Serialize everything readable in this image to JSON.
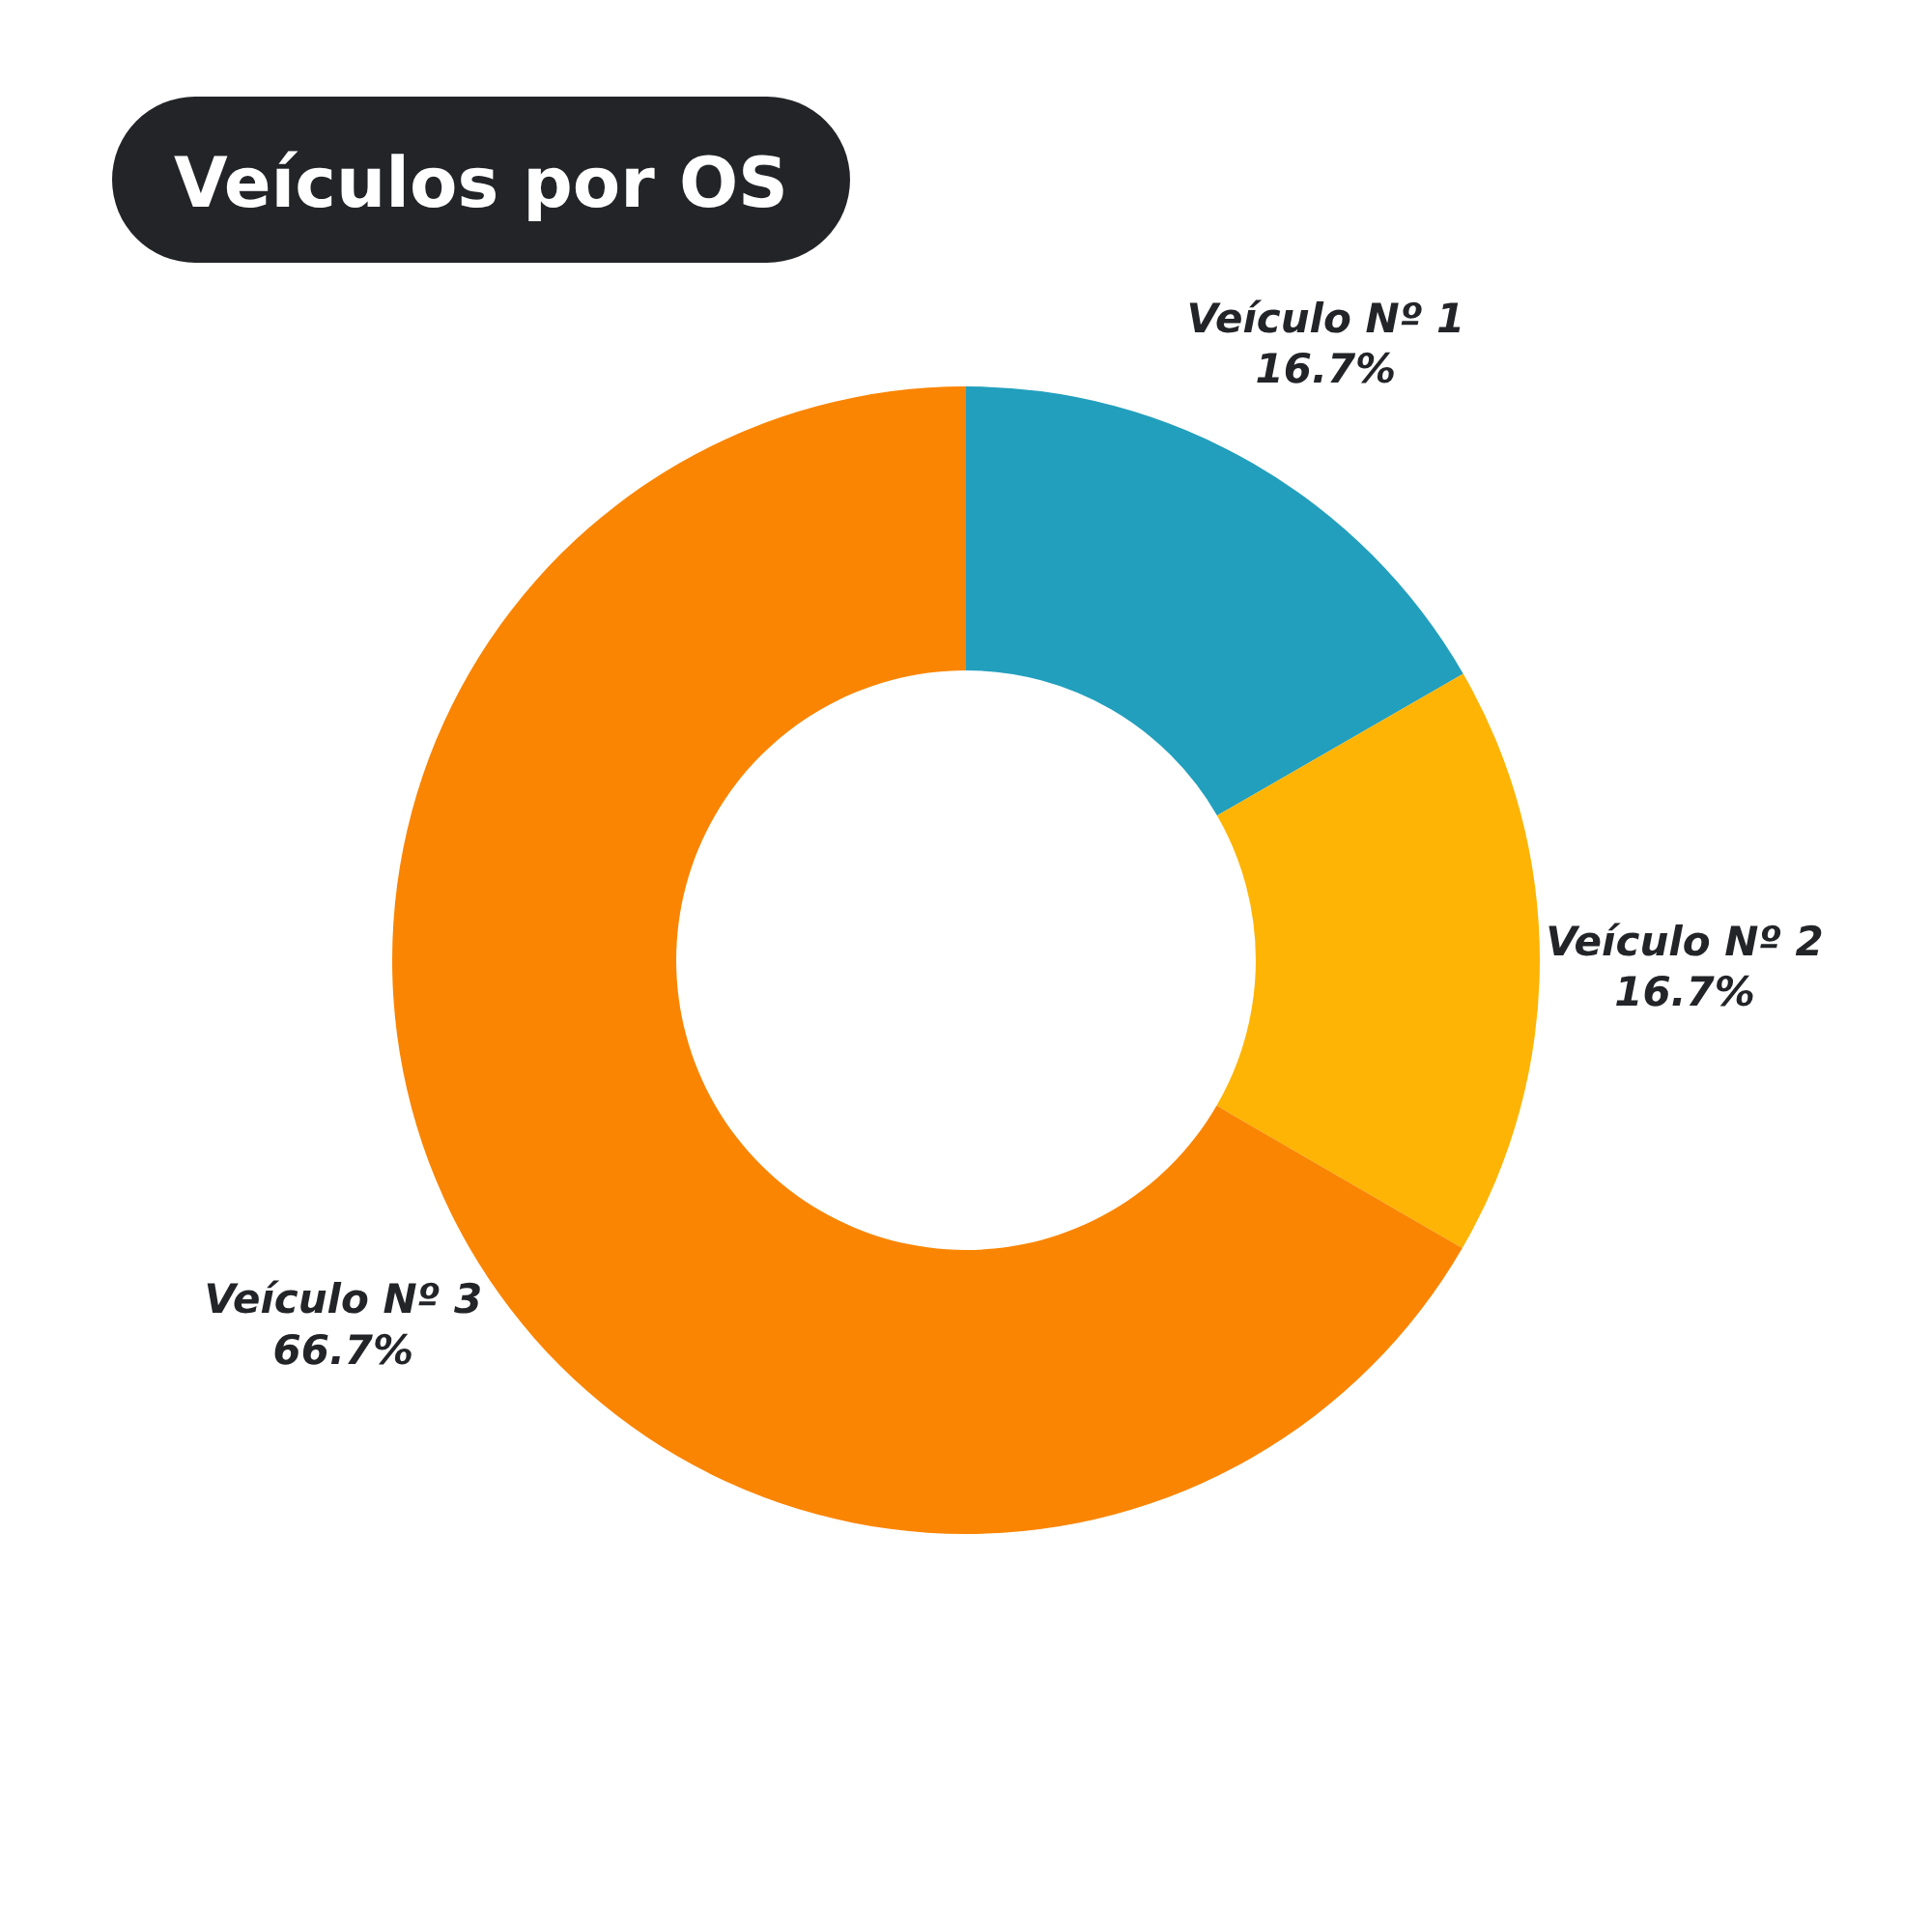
{
  "chart_data": {
    "type": "donut",
    "title": "Veículos por OS",
    "categories": [
      "Veículo Nº 1",
      "Veículo Nº 2",
      "Veículo Nº 3"
    ],
    "values": [
      16.7,
      16.7,
      66.7
    ],
    "colors": [
      "#229fbd",
      "#feb404",
      "#fa8502"
    ],
    "value_labels": [
      "16.7%",
      "16.7%",
      "66.7%"
    ]
  }
}
